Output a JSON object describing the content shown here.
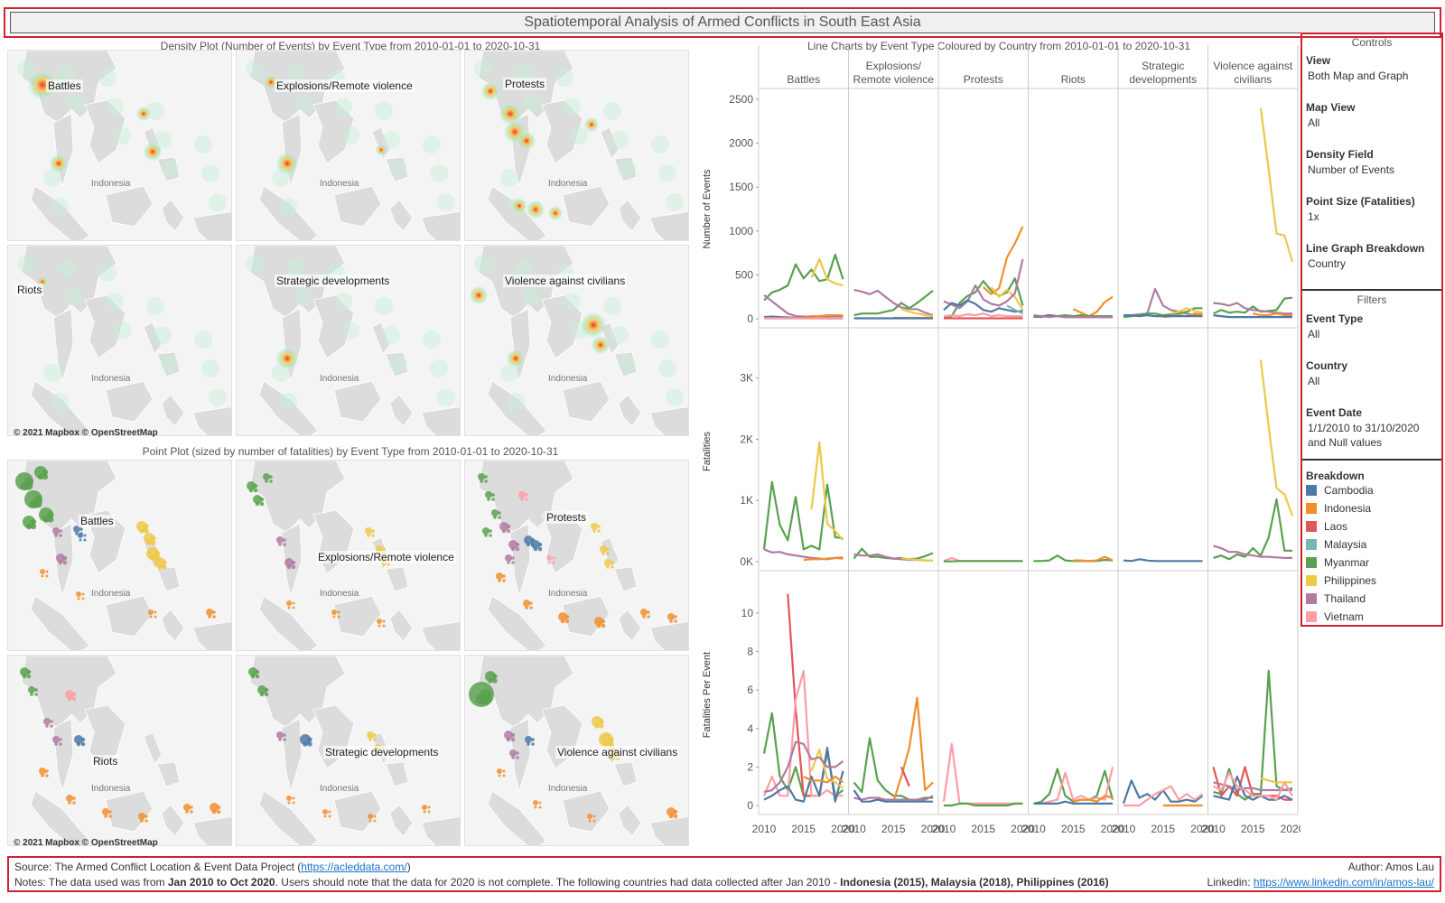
{
  "title": "Spatiotemporal Analysis of Armed Conflicts in South East Asia",
  "density_section": {
    "title": "Density Plot (Number of Events) by Event Type from 2010-01-01 to 2020-10-31",
    "panels": [
      "Battles",
      "Explosions/Remote violence",
      "Protests",
      "Riots",
      "Strategic developments",
      "Violence against civilians"
    ],
    "map_label": "Indonesia",
    "copyright": "© 2021 Mapbox © OpenStreetMap"
  },
  "point_section": {
    "title": "Point Plot (sized by number of fatalities) by Event Type from 2010-01-01 to 2020-10-31",
    "panels": [
      "Battles",
      "Explosions/Remote violence",
      "Protests",
      "Riots",
      "Strategic developments",
      "Violence against civilians"
    ],
    "map_label": "Indonesia",
    "copyright": "© 2021 Mapbox © OpenStreetMap"
  },
  "line_section": {
    "title": "Line Charts by Event Type Coloured by Country from 2010-01-01 to 2020-10-31",
    "columns": [
      "Battles",
      "Explosions/ Remote violence",
      "Protests",
      "Riots",
      "Strategic developments",
      "Violence against civilians"
    ],
    "rows": [
      {
        "axis_label": "Number of Events",
        "ticks": [
          "2500",
          "2000",
          "1500",
          "1000",
          "500",
          "0"
        ]
      },
      {
        "axis_label": "Fatalities",
        "ticks": [
          "3K",
          "2K",
          "1K",
          "0K"
        ]
      },
      {
        "axis_label": "Fatalities Per Event",
        "ticks": [
          "10",
          "8",
          "6",
          "4",
          "2",
          "0"
        ]
      }
    ],
    "x_ticks": [
      "2010",
      "2015",
      "2020"
    ]
  },
  "chart_data": {
    "type": "line",
    "x": [
      2010,
      2011,
      2012,
      2013,
      2014,
      2015,
      2016,
      2017,
      2018,
      2019,
      2020
    ],
    "events": {
      "Battles": {
        "Myanmar": [
          210,
          300,
          330,
          380,
          620,
          460,
          560,
          430,
          450,
          730,
          450
        ],
        "Philippines": [
          null,
          null,
          null,
          null,
          null,
          null,
          470,
          680,
          450,
          400,
          380
        ],
        "Thailand": [
          270,
          200,
          130,
          60,
          30,
          25,
          25,
          20,
          20,
          30,
          30
        ],
        "Indonesia": [
          null,
          null,
          null,
          null,
          null,
          20,
          30,
          30,
          40,
          40,
          40
        ],
        "Cambodia": [
          20,
          25,
          20,
          15,
          10,
          10,
          10,
          5,
          5,
          5,
          5
        ],
        "Laos": [
          5,
          5,
          5,
          5,
          5,
          5,
          5,
          5,
          5,
          5,
          5
        ],
        "Malaysia": [
          null,
          null,
          null,
          null,
          null,
          null,
          null,
          null,
          5,
          5,
          5
        ],
        "Vietnam": [
          5,
          5,
          5,
          5,
          5,
          5,
          5,
          5,
          5,
          5,
          5
        ]
      },
      "Explosions/ Remote violence": {
        "Myanmar": [
          40,
          60,
          60,
          60,
          80,
          100,
          180,
          120,
          180,
          250,
          320
        ],
        "Thailand": [
          330,
          310,
          280,
          320,
          250,
          180,
          130,
          110,
          110,
          70,
          40
        ],
        "Philippines": [
          null,
          null,
          null,
          null,
          null,
          null,
          110,
          80,
          60,
          40,
          30
        ],
        "Indonesia": [
          null,
          null,
          null,
          null,
          null,
          10,
          10,
          10,
          10,
          10,
          10
        ],
        "Cambodia": [
          5,
          5,
          5,
          5,
          5,
          5,
          5,
          5,
          5,
          5,
          5
        ]
      },
      "Protests": {
        "Myanmar": [
          20,
          30,
          180,
          260,
          300,
          430,
          320,
          260,
          300,
          460,
          150
        ],
        "Indonesia": [
          null,
          null,
          null,
          null,
          null,
          360,
          280,
          350,
          700,
          860,
          1050
        ],
        "Philippines": [
          null,
          null,
          null,
          null,
          null,
          null,
          360,
          250,
          330,
          250,
          100
        ],
        "Thailand": [
          200,
          160,
          120,
          200,
          380,
          220,
          170,
          150,
          200,
          290,
          680
        ],
        "Cambodia": [
          100,
          180,
          150,
          210,
          170,
          100,
          80,
          120,
          100,
          80,
          90
        ],
        "Malaysia": [
          null,
          null,
          null,
          null,
          null,
          null,
          null,
          null,
          150,
          100,
          60
        ],
        "Vietnam": [
          30,
          40,
          30,
          50,
          40,
          60,
          30,
          40,
          30,
          30,
          30
        ],
        "Laos": [
          5,
          5,
          5,
          5,
          5,
          5,
          5,
          5,
          5,
          5,
          5
        ]
      },
      "Riots": {
        "Indonesia": [
          null,
          null,
          null,
          null,
          null,
          110,
          70,
          30,
          80,
          190,
          250
        ],
        "Myanmar": [
          20,
          30,
          40,
          30,
          40,
          30,
          40,
          30,
          30,
          30,
          30
        ],
        "Cambodia": [
          30,
          20,
          40,
          30,
          20,
          20,
          20,
          20,
          20,
          20,
          20
        ],
        "Thailand": [
          40,
          30,
          20,
          30,
          20,
          20,
          20,
          20,
          20,
          20,
          20
        ]
      },
      "Strategic developments": {
        "Thailand": [
          30,
          40,
          50,
          60,
          340,
          150,
          100,
          80,
          60,
          40,
          40
        ],
        "Myanmar": [
          20,
          30,
          40,
          60,
          60,
          40,
          50,
          60,
          80,
          120,
          120
        ],
        "Philippines": [
          null,
          null,
          null,
          null,
          null,
          null,
          60,
          80,
          120,
          90,
          70
        ],
        "Indonesia": [
          null,
          null,
          null,
          null,
          null,
          20,
          30,
          40,
          30,
          60,
          50
        ],
        "Cambodia": [
          40,
          40,
          30,
          40,
          30,
          30,
          30,
          30,
          30,
          30,
          30
        ]
      },
      "Violence against civilians": {
        "Philippines": [
          null,
          null,
          null,
          null,
          null,
          null,
          2400,
          1700,
          970,
          950,
          650
        ],
        "Myanmar": [
          60,
          100,
          70,
          80,
          70,
          140,
          80,
          90,
          100,
          230,
          240
        ],
        "Thailand": [
          180,
          170,
          150,
          180,
          120,
          100,
          90,
          80,
          70,
          60,
          60
        ],
        "Indonesia": [
          null,
          null,
          null,
          null,
          null,
          60,
          40,
          40,
          60,
          40,
          40
        ],
        "Cambodia": [
          40,
          30,
          20,
          20,
          20,
          20,
          20,
          20,
          20,
          20,
          20
        ]
      }
    },
    "fatalities": {
      "Battles": {
        "Myanmar": [
          200,
          1300,
          600,
          350,
          1060,
          200,
          260,
          200,
          1260,
          400,
          380
        ],
        "Philippines": [
          null,
          null,
          null,
          null,
          null,
          null,
          850,
          1950,
          620,
          500,
          350
        ],
        "Thailand": [
          200,
          150,
          160,
          120,
          100,
          80,
          60,
          50,
          40,
          60,
          70
        ],
        "Indonesia": [
          null,
          null,
          null,
          null,
          null,
          30,
          40,
          40,
          50,
          60,
          50
        ]
      },
      "Explosions/ Remote violence": {
        "Myanmar": [
          50,
          210,
          80,
          80,
          60,
          50,
          60,
          40,
          50,
          90,
          140
        ],
        "Thailand": [
          120,
          100,
          100,
          120,
          80,
          50,
          40,
          30,
          30,
          20,
          20
        ],
        "Philippines": [
          null,
          null,
          null,
          null,
          null,
          null,
          60,
          40,
          30,
          20,
          20
        ]
      },
      "Protests": {
        "Vietnam": [
          10,
          60,
          10,
          10,
          10,
          10,
          10,
          10,
          10,
          10,
          10
        ],
        "Myanmar": [
          5,
          5,
          10,
          10,
          10,
          10,
          10,
          10,
          10,
          10,
          10
        ]
      },
      "Riots": {
        "Myanmar": [
          10,
          10,
          20,
          100,
          20,
          10,
          10,
          10,
          10,
          30,
          20
        ],
        "Indonesia": [
          null,
          null,
          null,
          null,
          null,
          20,
          20,
          10,
          20,
          80,
          20
        ]
      },
      "Strategic developments": {
        "Cambodia": [
          20,
          10,
          40,
          20,
          10,
          10,
          10,
          10,
          10,
          10,
          10
        ]
      },
      "Violence against civilians": {
        "Philippines": [
          null,
          null,
          null,
          null,
          null,
          null,
          3300,
          2200,
          1200,
          1100,
          750
        ],
        "Myanmar": [
          60,
          100,
          40,
          120,
          80,
          220,
          100,
          400,
          1020,
          180,
          180
        ],
        "Thailand": [
          260,
          220,
          160,
          160,
          120,
          100,
          80,
          80,
          70,
          60,
          60
        ]
      }
    },
    "fatalities_per_event": {
      "Battles": {
        "Myanmar": [
          2.7,
          4.8,
          1.5,
          0.8,
          2.0,
          0.5,
          0.5,
          0.5,
          2.8,
          0.5,
          0.8
        ],
        "Laos": [
          null,
          null,
          null,
          11.0,
          5.0,
          0.5,
          0.5,
          null,
          null,
          null,
          null
        ],
        "Vietnam": [
          0.5,
          1.5,
          0.5,
          0.5,
          5.5,
          7.0,
          0.5,
          0.5,
          0.8,
          0.5,
          0.5
        ],
        "Cambodia": [
          0.3,
          0.5,
          0.8,
          1.0,
          0.3,
          0.2,
          1.5,
          0.5,
          3.0,
          0.2,
          1.8
        ],
        "Philippines": [
          null,
          null,
          null,
          null,
          null,
          null,
          1.8,
          2.9,
          1.4,
          1.2,
          0.9
        ],
        "Indonesia": [
          null,
          null,
          null,
          null,
          null,
          1.5,
          1.3,
          1.3,
          1.2,
          1.5,
          1.2
        ],
        "Thailand": [
          0.7,
          0.8,
          1.2,
          2.0,
          3.3,
          3.2,
          2.4,
          2.5,
          2.0,
          2.0,
          2.3
        ]
      },
      "Explosions/ Remote violence": {
        "Myanmar": [
          1.2,
          0.7,
          3.5,
          1.3,
          0.8,
          0.5,
          0.5,
          0.3,
          0.3,
          0.4,
          0.4
        ],
        "Indonesia": [
          null,
          null,
          null,
          null,
          null,
          0.2,
          1.5,
          3.0,
          5.6,
          0.8,
          1.2
        ],
        "Laos": [
          null,
          null,
          null,
          null,
          null,
          null,
          2.0,
          1.0,
          null,
          null,
          null
        ],
        "Thailand": [
          0.4,
          0.3,
          0.4,
          0.4,
          0.3,
          0.3,
          0.3,
          0.3,
          0.3,
          0.3,
          0.5
        ],
        "Cambodia": [
          0.8,
          0.2,
          0.2,
          0.3,
          0.2,
          0.2,
          0.2,
          0.2,
          0.2,
          0.2,
          0.2
        ]
      },
      "Protests": {
        "Vietnam": [
          0.2,
          3.2,
          0.1,
          0.1,
          0.1,
          0.1,
          0.1,
          0.1,
          0.1,
          0.1,
          0.1
        ],
        "Myanmar": [
          0.0,
          0.0,
          0.1,
          0.1,
          0.0,
          0.0,
          0.0,
          0.0,
          0.0,
          0.1,
          0.1
        ]
      },
      "Riots": {
        "Myanmar": [
          0.1,
          0.2,
          0.6,
          1.9,
          0.5,
          0.2,
          0.3,
          0.3,
          0.5,
          1.8,
          0.3
        ],
        "Vietnam": [
          0.1,
          0.1,
          0.2,
          0.3,
          1.7,
          0.3,
          0.5,
          0.3,
          0.4,
          0.3,
          2.0
        ],
        "Indonesia": [
          null,
          null,
          null,
          null,
          null,
          0.2,
          0.3,
          0.3,
          0.2,
          0.5,
          0.4
        ],
        "Cambodia": [
          0.1,
          0.1,
          0.1,
          0.1,
          0.2,
          0.1,
          0.1,
          0.1,
          0.1,
          0.1,
          0.1
        ]
      },
      "Strategic developments": {
        "Cambodia": [
          0.1,
          1.3,
          0.4,
          0.6,
          0.3,
          0.8,
          0.2,
          0.2,
          0.3,
          0.2,
          0.5
        ],
        "Vietnam": [
          0.0,
          0.0,
          0.0,
          0.3,
          0.6,
          0.8,
          1.0,
          0.3,
          0.6,
          0.3,
          0.6
        ],
        "Indonesia": [
          null,
          null,
          null,
          null,
          null,
          0.0,
          0.0,
          0.0,
          0.0,
          0.0,
          0.0
        ]
      },
      "Violence against civilians": {
        "Myanmar": [
          0.7,
          0.6,
          1.9,
          0.6,
          0.3,
          0.6,
          0.6,
          7.0,
          1.0,
          0.8,
          0.9
        ],
        "Laos": [
          2.0,
          0.5,
          1.0,
          0.5,
          2.0,
          0.5,
          0.5,
          0.5,
          0.5,
          0.3,
          0.3
        ],
        "Philippines": [
          null,
          null,
          null,
          null,
          null,
          null,
          1.4,
          1.3,
          1.2,
          1.2,
          1.2
        ],
        "Thailand": [
          1.2,
          1.1,
          1.0,
          0.8,
          0.9,
          0.9,
          0.8,
          0.8,
          0.8,
          0.8,
          0.8
        ],
        "Cambodia": [
          0.5,
          0.4,
          0.3,
          1.5,
          0.5,
          0.3,
          0.5,
          0.3,
          0.3,
          0.5,
          0.3
        ],
        "Vietnam": [
          1.0,
          0.8,
          1.7,
          1.0,
          0.8,
          0.5,
          0.5,
          0.5,
          0.3,
          1.2,
          0.5
        ]
      }
    }
  },
  "controls": {
    "title": "Controls",
    "items": [
      {
        "label": "View",
        "value": "Both Map and Graph"
      },
      {
        "label": "Map View",
        "value": "All"
      },
      {
        "label": "Density Field",
        "value": "Number of Events"
      },
      {
        "label": "Point Size (Fatalities)",
        "value": "1x"
      },
      {
        "label": "Line Graph Breakdown",
        "value": "Country"
      }
    ]
  },
  "filters": {
    "title": "Filters",
    "items": [
      {
        "label": "Event Type",
        "value": "All"
      },
      {
        "label": "Country",
        "value": "All"
      },
      {
        "label": "Event Date",
        "value": "1/1/2010 to 31/10/2020 and Null values"
      }
    ]
  },
  "breakdown": {
    "title": "Breakdown",
    "items": [
      {
        "name": "Cambodia",
        "color": "#4e79a7"
      },
      {
        "name": "Indonesia",
        "color": "#f28e2b"
      },
      {
        "name": "Laos",
        "color": "#e15759"
      },
      {
        "name": "Malaysia",
        "color": "#76b7b2"
      },
      {
        "name": "Myanmar",
        "color": "#59a14f"
      },
      {
        "name": "Philippines",
        "color": "#edc948"
      },
      {
        "name": "Thailand",
        "color": "#b07aa1"
      },
      {
        "name": "Vietnam",
        "color": "#ff9da7"
      }
    ]
  },
  "footer": {
    "source_prefix": "Source: The Armed Conflict Location & Event Data Project (",
    "source_link": "https://acleddata.com/",
    "source_suffix": ")",
    "notes_prefix": "Notes: The data used was from ",
    "notes_range": "Jan 2010 to Oct 2020",
    "notes_mid": ". Users should note that the data for 2020 is not complete. The following countries had data collected after Jan 2010 - ",
    "notes_countries": "Indonesia (2015), Malaysia (2018), Philippines (2016)",
    "author": "Author: Amos Lau",
    "linkedin_prefix": "Linkedin: ",
    "linkedin_link": "https://www.linkedin.com/in/amos-lau/"
  }
}
